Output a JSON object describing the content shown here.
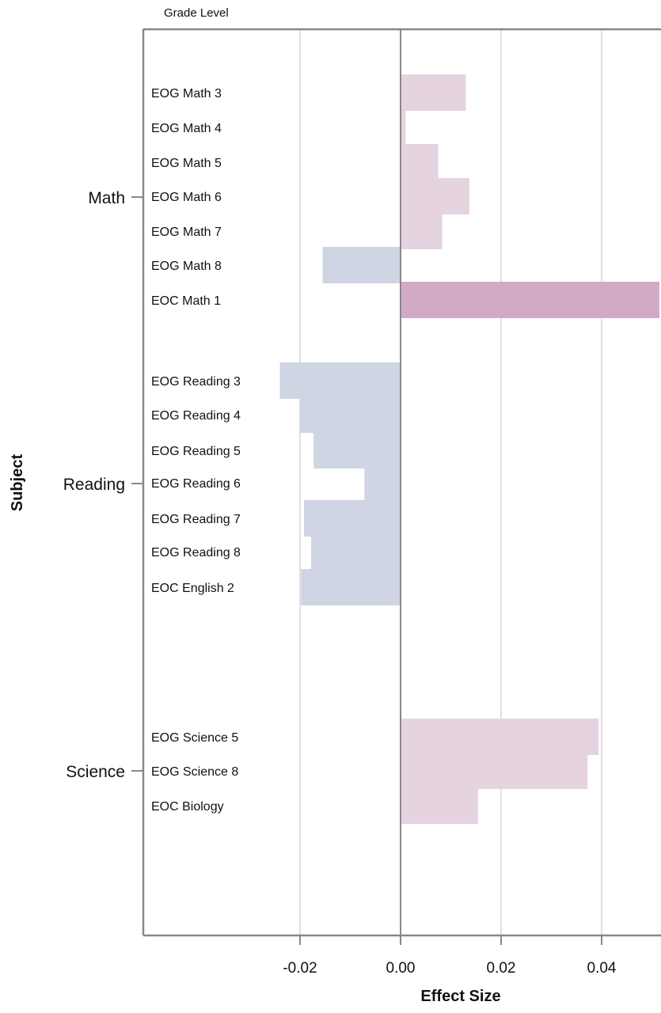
{
  "chart_data": {
    "type": "bar",
    "orientation": "horizontal",
    "xlabel": "Effect Size",
    "ylabel": "Subject",
    "inner_axis_label": "Grade Level",
    "xlim": [
      -0.051,
      0.0515
    ],
    "xticks": [
      -0.02,
      0.0,
      0.02,
      0.04
    ],
    "xtick_labels": [
      "-0.02",
      "0.00",
      "0.02",
      "0.04"
    ],
    "grid": "vertical",
    "colors": {
      "positive": "#e6d3e0",
      "positive_highlight": "#d3aac6",
      "negative": "#cfd5e2",
      "axis": "#888888",
      "grid": "#e0e0e0"
    },
    "groups": [
      {
        "name": "Math",
        "items": [
          {
            "label": "EOG Math 3",
            "value": 0.013
          },
          {
            "label": "EOG Math 4",
            "value": 0.001
          },
          {
            "label": "EOG Math 5",
            "value": 0.0075
          },
          {
            "label": "EOG Math 6",
            "value": 0.0137
          },
          {
            "label": "EOG Math 7",
            "value": 0.0083
          },
          {
            "label": "EOG Math 8",
            "value": -0.0155
          },
          {
            "label": "EOC Math 1",
            "value": 0.0515,
            "highlight": true
          }
        ]
      },
      {
        "name": "Reading",
        "items": [
          {
            "label": "EOG Reading 3",
            "value": -0.024
          },
          {
            "label": "EOG Reading 4",
            "value": -0.02
          },
          {
            "label": "EOG Reading 5",
            "value": -0.0173
          },
          {
            "label": "EOG Reading 6",
            "value": -0.0072
          },
          {
            "label": "EOG Reading 7",
            "value": -0.0192
          },
          {
            "label": "EOG Reading 8",
            "value": -0.0178
          },
          {
            "label": "EOC English 2",
            "value": -0.0198
          }
        ]
      },
      {
        "name": "Science",
        "items": [
          {
            "label": "EOG Science 5",
            "value": 0.0394
          },
          {
            "label": "EOG Science 8",
            "value": 0.0372
          },
          {
            "label": "EOC Biology",
            "value": 0.0154
          }
        ]
      }
    ]
  }
}
